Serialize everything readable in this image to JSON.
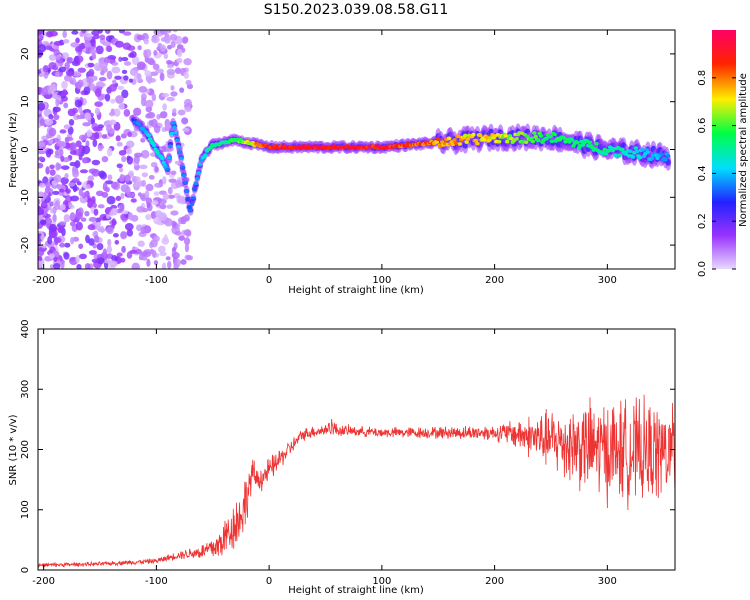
{
  "title": "S150.2023.039.08.58.G11",
  "chart_data": [
    {
      "type": "heatmap",
      "xlabel": "Height of straight line (km)",
      "ylabel": "Frequency (Hz)",
      "xlim": [
        -205,
        360
      ],
      "ylim": [
        -25,
        25
      ],
      "xticks": [
        -200,
        -100,
        0,
        100,
        200,
        300
      ],
      "yticks": [
        -20,
        -10,
        0,
        10,
        20
      ],
      "colorbar": {
        "label": "Normalized spectral amplitude",
        "range": [
          0.0,
          1.0
        ],
        "ticks": [
          "0.0",
          "0.2",
          "0.4",
          "0.6",
          "0.8"
        ],
        "colormap": [
          "#e8d8ff",
          "#9933ff",
          "#2222ff",
          "#00ddff",
          "#00ff44",
          "#ffee00",
          "#ff2200",
          "#ff0066"
        ]
      },
      "ridge": [
        {
          "x": -120,
          "y": 6,
          "a": 0.35
        },
        {
          "x": -110,
          "y": 4,
          "a": 0.45
        },
        {
          "x": -100,
          "y": 0,
          "a": 0.5
        },
        {
          "x": -90,
          "y": -4,
          "a": 0.4
        },
        {
          "x": -85,
          "y": 6,
          "a": 0.45
        },
        {
          "x": -78,
          "y": -2,
          "a": 0.4
        },
        {
          "x": -70,
          "y": -13,
          "a": 0.35
        },
        {
          "x": -60,
          "y": -2,
          "a": 0.45
        },
        {
          "x": -50,
          "y": 1,
          "a": 0.55
        },
        {
          "x": -30,
          "y": 2,
          "a": 0.6
        },
        {
          "x": 0,
          "y": 0.5,
          "a": 0.95
        },
        {
          "x": 50,
          "y": 0.5,
          "a": 1.0
        },
        {
          "x": 100,
          "y": 0.5,
          "a": 0.95
        },
        {
          "x": 150,
          "y": 1.5,
          "a": 0.85
        },
        {
          "x": 200,
          "y": 2.5,
          "a": 0.75
        },
        {
          "x": 250,
          "y": 2.5,
          "a": 0.6
        },
        {
          "x": 300,
          "y": 0,
          "a": 0.55
        },
        {
          "x": 355,
          "y": -1.5,
          "a": 0.4
        }
      ]
    },
    {
      "type": "line",
      "xlabel": "Height of straight line (km)",
      "ylabel": "SNR (10 * v/v)",
      "xlim": [
        -205,
        360
      ],
      "ylim": [
        0,
        400
      ],
      "xticks": [
        -200,
        -100,
        0,
        100,
        200,
        300
      ],
      "yticks": [
        0,
        100,
        200,
        300,
        400
      ],
      "color": "#ee3333",
      "series": [
        {
          "x": [
            -205,
            -150,
            -100,
            -80,
            -60,
            -45,
            -35,
            -25,
            -20,
            -15,
            -10,
            -5,
            0,
            10,
            20,
            30,
            40,
            50,
            55,
            60,
            80,
            100,
            150,
            200,
            220,
            250,
            280,
            300,
            330,
            360
          ],
          "mean": [
            8,
            10,
            15,
            25,
            30,
            40,
            65,
            90,
            120,
            160,
            150,
            155,
            165,
            185,
            205,
            225,
            230,
            232,
            240,
            232,
            230,
            228,
            228,
            228,
            226,
            215,
            205,
            200,
            195,
            195
          ],
          "spread": [
            4,
            4,
            5,
            8,
            15,
            30,
            45,
            55,
            50,
            30,
            25,
            25,
            25,
            20,
            15,
            12,
            12,
            12,
            20,
            12,
            10,
            10,
            12,
            15,
            30,
            60,
            90,
            100,
            100,
            90
          ]
        }
      ]
    }
  ]
}
